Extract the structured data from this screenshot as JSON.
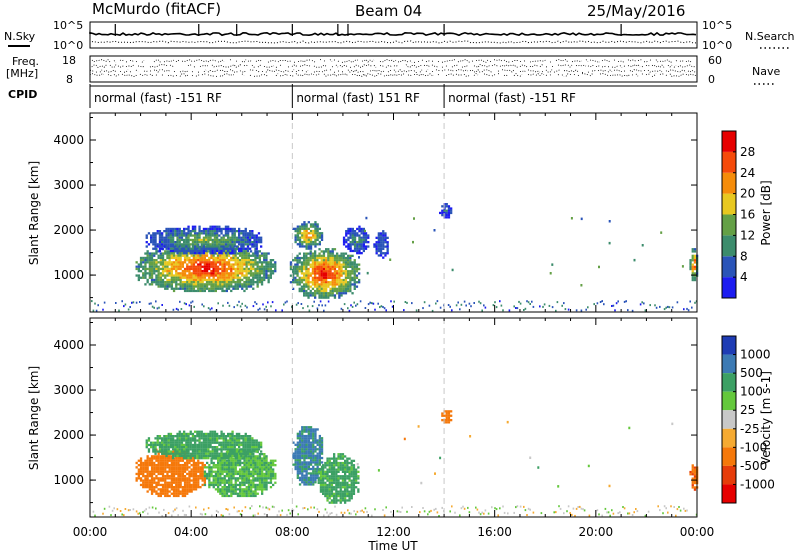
{
  "header": {
    "station": "McMurdo (fitACF)",
    "beam": "Beam 04",
    "date": "25/May/2016"
  },
  "panels": {
    "nsky_label": "N.Sky",
    "nsearch_label": "N.Search",
    "freq_label_1": "Freq.",
    "freq_label_2": "[MHz]",
    "nave_label": "Nave",
    "cpid_label": "CPID",
    "count_ticks_top": "10^5",
    "count_ticks_bottom": "10^0",
    "freq_ticks": [
      "18",
      "8"
    ],
    "nave_ticks": [
      "60",
      "0"
    ],
    "cpid_segments": [
      {
        "start_hour": 0.0,
        "end_hour": 8.0,
        "label": "normal (fast) -151 RF"
      },
      {
        "start_hour": 8.0,
        "end_hour": 14.0,
        "label": "normal (fast) 151 RF"
      },
      {
        "start_hour": 14.0,
        "end_hour": 24.0,
        "label": "normal (fast) -151 RF"
      }
    ]
  },
  "axes": {
    "xlabel": "Time UT",
    "ylabel": "Slant Range [km]",
    "x_ticks": [
      "00:00",
      "04:00",
      "08:00",
      "12:00",
      "16:00",
      "20:00",
      "00:00"
    ],
    "y_ticks": [
      "1000",
      "2000",
      "3000",
      "4000"
    ]
  },
  "chart_data": [
    {
      "type": "heatmap",
      "title": "",
      "xlabel": "Time UT",
      "ylabel": "Slant Range [km]",
      "xlim_hours": [
        0,
        24
      ],
      "ylim_km": [
        180,
        4600
      ],
      "colorbar": {
        "label": "Power [dB]",
        "ticks": [
          "4",
          "8",
          "12",
          "16",
          "20",
          "24",
          "28"
        ],
        "colors": [
          "#1c1cf0",
          "#2a54b8",
          "#3c8c6c",
          "#64a046",
          "#e8c820",
          "#f58c0a",
          "#f54a0a",
          "#e60000"
        ]
      },
      "echo_regions": [
        {
          "t0": 1.8,
          "t1": 7.3,
          "r0": 650,
          "r1": 1700,
          "value": 28,
          "note": "strong echoes"
        },
        {
          "t0": 2.2,
          "t1": 6.8,
          "r0": 1500,
          "r1": 2100,
          "value": 14
        },
        {
          "t0": 7.9,
          "t1": 10.6,
          "r0": 500,
          "r1": 1600,
          "value": 28
        },
        {
          "t0": 8.0,
          "t1": 9.2,
          "r0": 1600,
          "r1": 2200,
          "value": 22
        },
        {
          "t0": 10.0,
          "t1": 11.0,
          "r0": 1500,
          "r1": 2100,
          "value": 10
        },
        {
          "t0": 11.2,
          "t1": 11.8,
          "r0": 1400,
          "r1": 2000,
          "value": 8
        },
        {
          "t0": 13.8,
          "t1": 14.3,
          "r0": 2300,
          "r1": 2600,
          "value": 8
        },
        {
          "t0": 23.7,
          "t1": 24.0,
          "r0": 900,
          "r1": 1600,
          "value": 26
        }
      ]
    },
    {
      "type": "heatmap",
      "title": "",
      "xlabel": "Time UT",
      "ylabel": "Slant Range [km]",
      "xlim_hours": [
        0,
        24
      ],
      "ylim_km": [
        180,
        4600
      ],
      "colorbar": {
        "label": "Velocity [m s-1]",
        "ticks": [
          "1000",
          "500",
          "100",
          "25",
          "-25",
          "-100",
          "-500",
          "-1000"
        ],
        "colors": [
          "#1e3cb4",
          "#3c7ab4",
          "#3ca064",
          "#64c83c",
          "#c8c8c8",
          "#f5aa32",
          "#f5780a",
          "#e63c0a",
          "#e60000"
        ]
      },
      "echo_regions": [
        {
          "t0": 1.8,
          "t1": 4.5,
          "r0": 650,
          "r1": 1700,
          "value": -300
        },
        {
          "t0": 4.5,
          "t1": 7.3,
          "r0": 650,
          "r1": 1700,
          "value": 100
        },
        {
          "t0": 2.2,
          "t1": 6.8,
          "r0": 1500,
          "r1": 2100,
          "value": 150
        },
        {
          "t0": 8.0,
          "t1": 9.2,
          "r0": 900,
          "r1": 2200,
          "value": 600
        },
        {
          "t0": 9.0,
          "t1": 10.6,
          "r0": 500,
          "r1": 1600,
          "value": 150
        },
        {
          "t0": 13.8,
          "t1": 14.3,
          "r0": 2300,
          "r1": 2600,
          "value": -200
        },
        {
          "t0": 23.7,
          "t1": 24.0,
          "r0": 800,
          "r1": 1400,
          "value": -400
        }
      ]
    }
  ]
}
